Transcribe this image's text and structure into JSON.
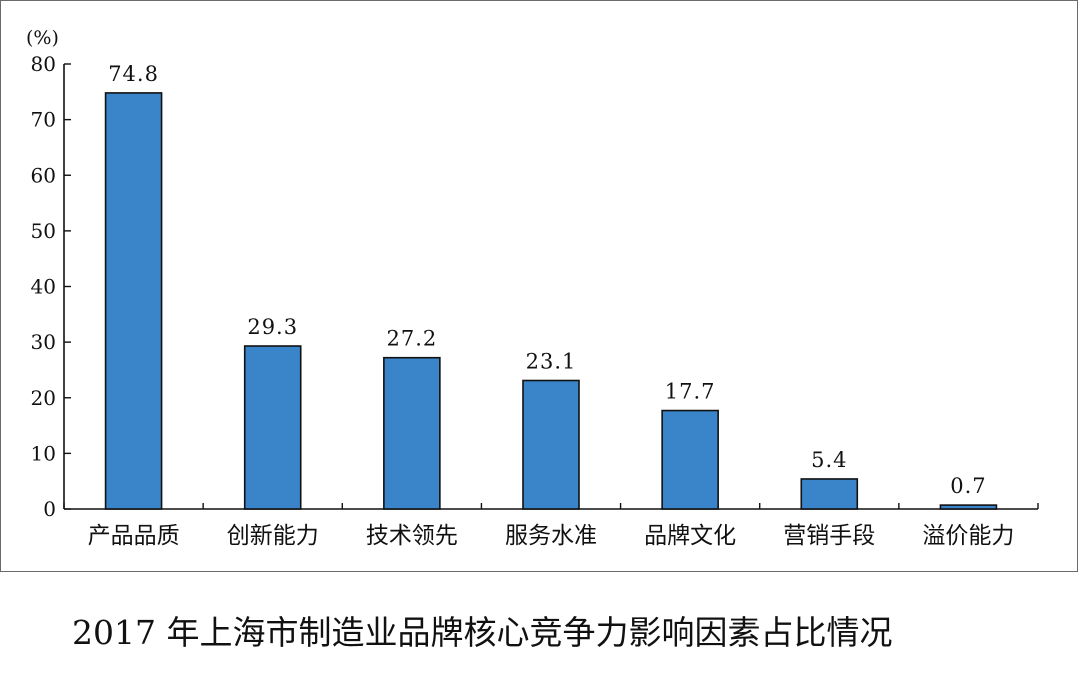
{
  "caption": "2017 年上海市制造业品牌核心竞争力影响因素占比情况",
  "chart_data": {
    "type": "bar",
    "title": "2017 年上海市制造业品牌核心竞争力影响因素占比情况",
    "unit": "(%)",
    "categories": [
      "产品品质",
      "创新能力",
      "技术领先",
      "服务水准",
      "品牌文化",
      "营销手段",
      "溢价能力"
    ],
    "values": [
      74.8,
      29.3,
      27.2,
      23.1,
      17.7,
      5.4,
      0.7
    ],
    "value_labels": [
      "74.8",
      "29.3",
      "27.2",
      "23.1",
      "17.7",
      "5.4",
      "0.7"
    ],
    "yticks": [
      "0",
      "10",
      "20",
      "30",
      "40",
      "50",
      "60",
      "70",
      "80"
    ],
    "ylim": [
      0,
      80
    ],
    "grid": false,
    "colors": {
      "bar": "#3a85c9",
      "bar_edge": "#111111",
      "axis": "#111111"
    }
  }
}
